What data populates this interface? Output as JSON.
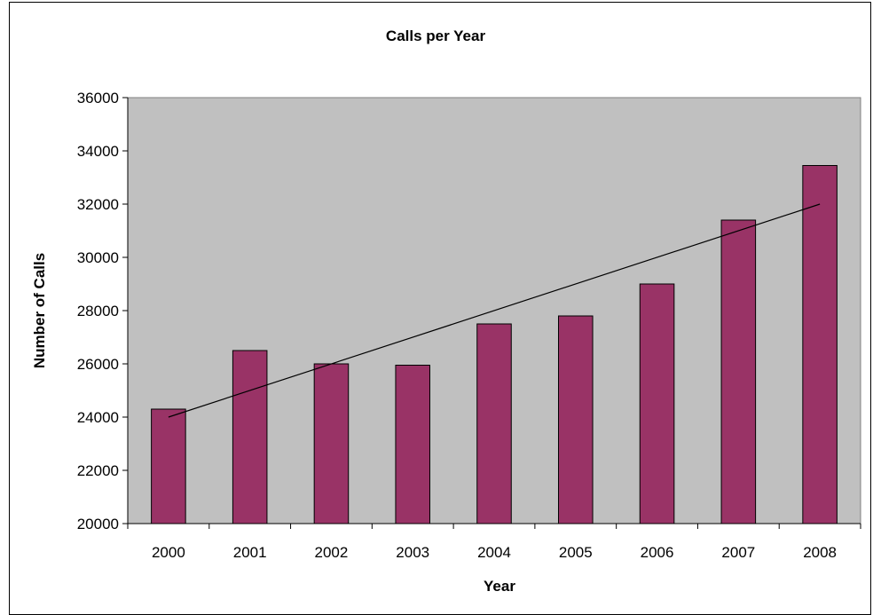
{
  "chart_data": {
    "type": "bar",
    "title": "Calls per Year",
    "xlabel": "Year",
    "ylabel": "Number of Calls",
    "categories": [
      "2000",
      "2001",
      "2002",
      "2003",
      "2004",
      "2005",
      "2006",
      "2007",
      "2008"
    ],
    "series": [
      {
        "values": [
          24300,
          26500,
          26000,
          25950,
          27500,
          27800,
          29000,
          31400,
          33450
        ]
      }
    ],
    "trendline": {
      "type": "linear",
      "start": 24000,
      "end": 32000
    },
    "ylim": [
      20000,
      36000
    ],
    "yticks": [
      "20000",
      "22000",
      "24000",
      "26000",
      "28000",
      "30000",
      "32000",
      "34000",
      "36000"
    ],
    "grid": false,
    "legend": "none",
    "colors": {
      "bar": "#993366",
      "plot_background": "#c0c0c0",
      "trendline": "#000000"
    }
  }
}
